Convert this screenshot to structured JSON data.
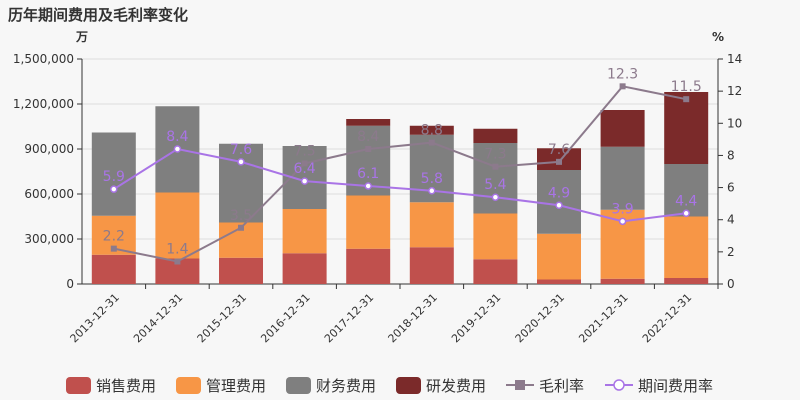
{
  "chart_data": {
    "type": "bar",
    "title": "历年期间费用及毛利率变化",
    "y_left_unit": "万",
    "y_right_unit": "%",
    "categories": [
      "2013-12-31",
      "2014-12-31",
      "2015-12-31",
      "2016-12-31",
      "2017-12-31",
      "2018-12-31",
      "2019-12-31",
      "2020-12-31",
      "2021-12-31",
      "2022-12-31"
    ],
    "y_left_ticks": [
      "0",
      "300,000",
      "600,000",
      "900,000",
      "1,200,000",
      "1,500,000"
    ],
    "y_right_ticks": [
      "0",
      "2",
      "4",
      "6",
      "8",
      "10",
      "12",
      "14"
    ],
    "ylim_left": [
      0,
      1500000
    ],
    "ylim_right": [
      0,
      14
    ],
    "stacked_series": [
      {
        "name": "销售费用",
        "color": "#c0504d",
        "values": [
          195000,
          170000,
          175000,
          205000,
          235000,
          245000,
          165000,
          30000,
          35000,
          40000
        ]
      },
      {
        "name": "管理费用",
        "color": "#f79646",
        "values": [
          260000,
          440000,
          235000,
          295000,
          355000,
          300000,
          305000,
          305000,
          460000,
          410000
        ]
      },
      {
        "name": "财务费用",
        "color": "#7f7f7f",
        "values": [
          555000,
          575000,
          525000,
          420000,
          465000,
          450000,
          470000,
          425000,
          420000,
          350000
        ]
      },
      {
        "name": "研发费用",
        "color": "#7b2a2a",
        "values": [
          0,
          0,
          0,
          0,
          45000,
          60000,
          95000,
          145000,
          245000,
          480000
        ]
      }
    ],
    "line_series": [
      {
        "name": "毛利率",
        "color": "#8c7a8c",
        "marker": "square",
        "values": [
          2.2,
          1.4,
          3.5,
          7.5,
          8.4,
          8.8,
          7.3,
          7.6,
          12.3,
          11.5
        ],
        "labels": [
          "2.2",
          "1.4",
          "3.5",
          "7.5",
          "8.4",
          "8.8",
          "7.3",
          "7.6",
          "12.3",
          "11.5"
        ]
      },
      {
        "name": "期间费用率",
        "color": "#a974e6",
        "marker": "circle",
        "values": [
          5.9,
          8.4,
          7.6,
          6.4,
          6.1,
          5.8,
          5.4,
          4.9,
          3.9,
          4.4
        ],
        "labels": [
          "5.9",
          "8.4",
          "7.6",
          "6.4",
          "6.1",
          "5.8",
          "5.4",
          "4.9",
          "3.9",
          "4.4"
        ]
      }
    ],
    "legend_position": "bottom"
  }
}
